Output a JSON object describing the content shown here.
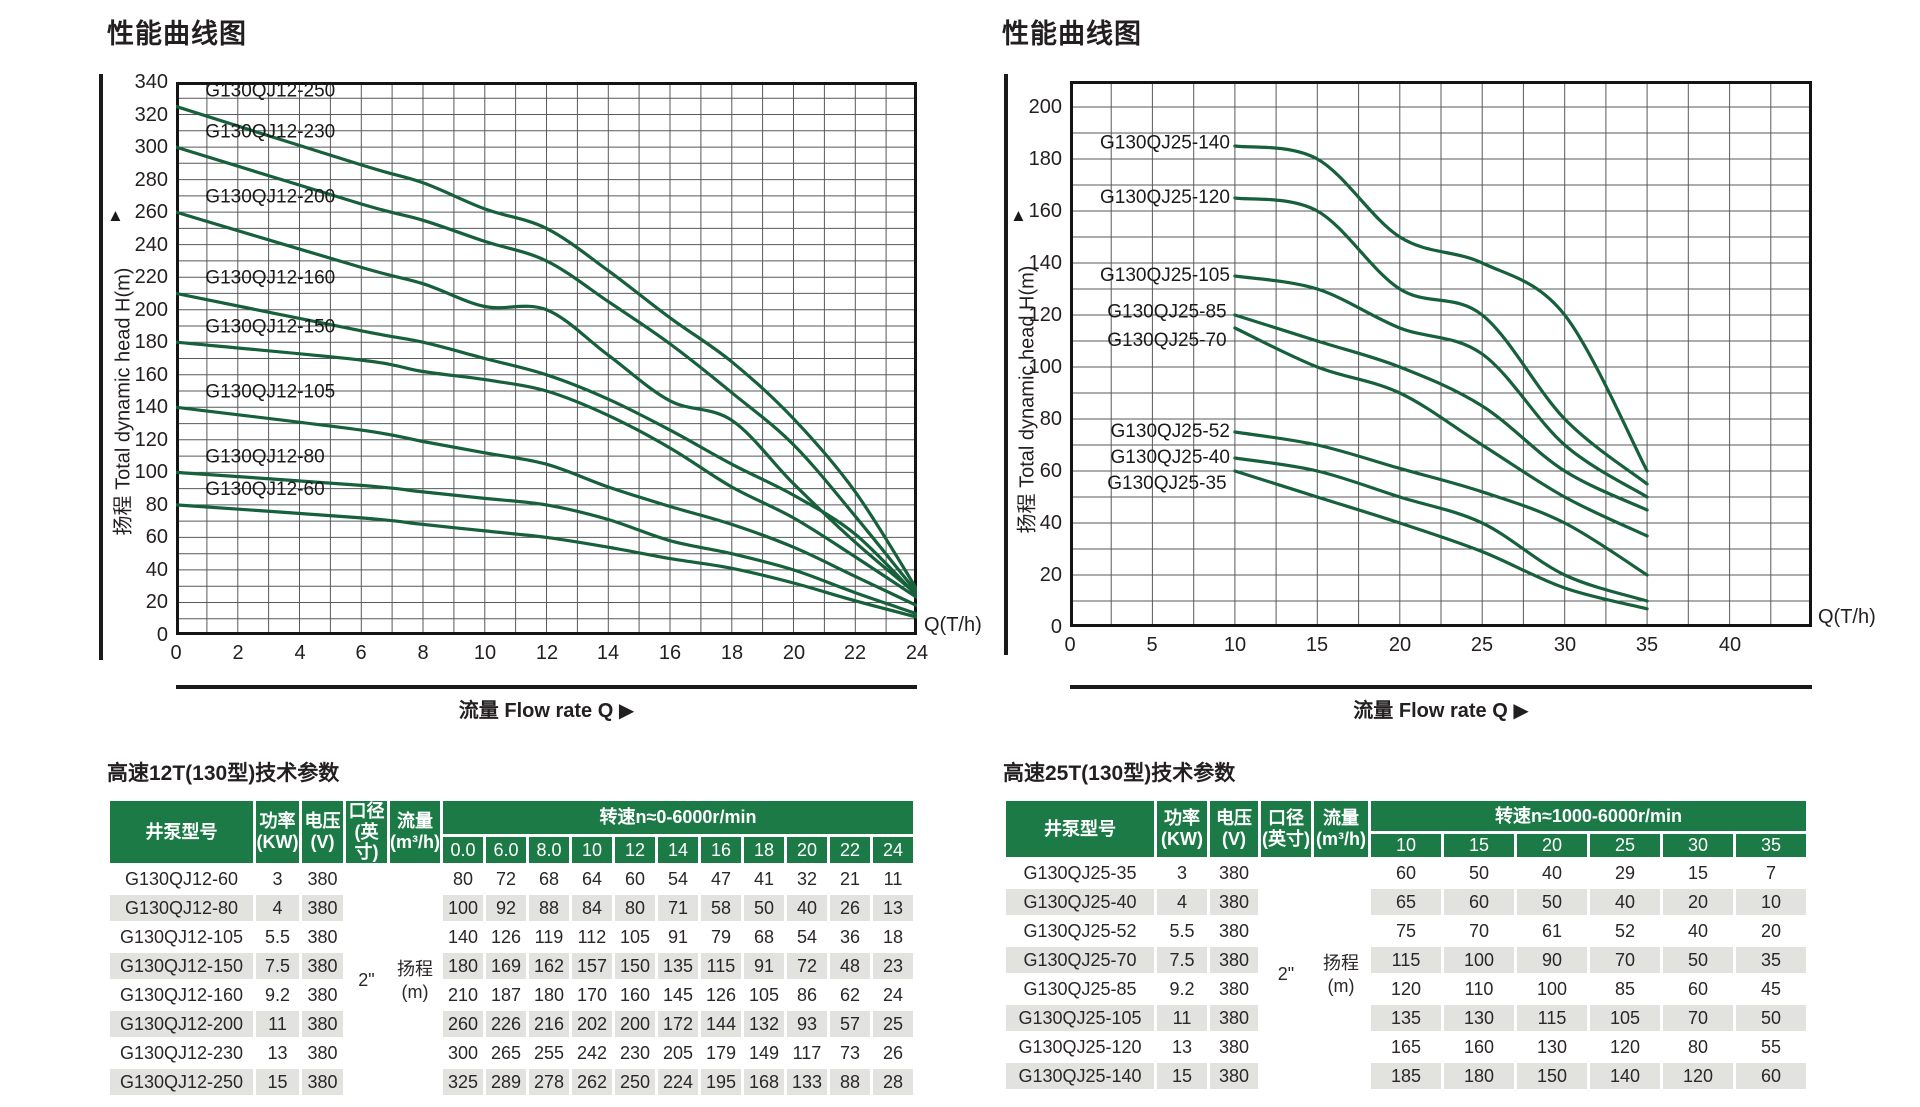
{
  "colors": {
    "curve_green": "#16603B",
    "table_header_green": "#1B7A46",
    "row_alt_gray": "#E2E2DE",
    "grid_line": "#58595B",
    "ink": "#231F20"
  },
  "chart_data": [
    {
      "type": "line",
      "title": "性能曲线图",
      "ylabel": "扬程 Total dynamic head H(m)",
      "ylabel_arrow": "▲",
      "xlabel": "流量 Flow rate Q",
      "xlabel_arrow": "▶",
      "x_unit": "Q(T/h)",
      "xlim": [
        0,
        24
      ],
      "ylim": [
        0,
        340
      ],
      "x_ticks": [
        0,
        2,
        4,
        6,
        8,
        10,
        12,
        14,
        16,
        18,
        20,
        22,
        24
      ],
      "x_grid_step": 1,
      "y_ticks": [
        0,
        20,
        40,
        60,
        80,
        100,
        120,
        140,
        160,
        180,
        200,
        220,
        240,
        260,
        280,
        300,
        320,
        340
      ],
      "y_grid_step": 10,
      "grid": true,
      "legend_position": "inline-labels",
      "x": [
        0,
        6,
        8,
        10,
        12,
        14,
        16,
        18,
        20,
        22,
        24
      ],
      "label_anchor": "start",
      "series": [
        {
          "name": "G130QJ12-250",
          "values": [
            325,
            289,
            278,
            262,
            250,
            224,
            195,
            168,
            133,
            88,
            28
          ],
          "label_x": 0.95,
          "label_y": 331
        },
        {
          "name": "G130QJ12-230",
          "values": [
            300,
            265,
            255,
            242,
            230,
            205,
            179,
            149,
            117,
            73,
            26
          ],
          "label_x": 0.95,
          "label_y": 306
        },
        {
          "name": "G130QJ12-200",
          "values": [
            260,
            226,
            216,
            202,
            200,
            172,
            144,
            132,
            93,
            57,
            25
          ],
          "label_x": 0.95,
          "label_y": 266
        },
        {
          "name": "G130QJ12-160",
          "values": [
            210,
            187,
            180,
            170,
            160,
            145,
            126,
            105,
            86,
            62,
            24
          ],
          "label_x": 0.95,
          "label_y": 216
        },
        {
          "name": "G130QJ12-150",
          "values": [
            180,
            169,
            162,
            157,
            150,
            135,
            115,
            91,
            72,
            48,
            23
          ],
          "label_x": 0.95,
          "label_y": 186
        },
        {
          "name": "G130QJ12-105",
          "values": [
            140,
            126,
            119,
            112,
            105,
            91,
            79,
            68,
            54,
            36,
            18
          ],
          "label_x": 0.95,
          "label_y": 146
        },
        {
          "name": "G130QJ12-80",
          "values": [
            100,
            92,
            88,
            84,
            80,
            71,
            58,
            50,
            40,
            26,
            13
          ],
          "label_x": 0.95,
          "label_y": 106
        },
        {
          "name": "G130QJ12-60",
          "values": [
            80,
            72,
            68,
            64,
            60,
            54,
            47,
            41,
            32,
            21,
            11
          ],
          "label_x": 0.95,
          "label_y": 86
        }
      ]
    },
    {
      "type": "line",
      "title": "性能曲线图",
      "ylabel": "扬程 Total dynamic head H(m)",
      "ylabel_arrow": "▲",
      "xlabel": "流量 Flow rate Q",
      "xlabel_arrow": "▶",
      "x_unit": "Q(T/h)",
      "xlim": [
        0,
        45
      ],
      "ylim": [
        0,
        210
      ],
      "x_ticks": [
        0,
        5,
        10,
        15,
        20,
        25,
        30,
        35,
        40
      ],
      "x_grid_step": 2.5,
      "y_ticks": [
        0,
        20,
        40,
        60,
        80,
        100,
        120,
        140,
        160,
        180,
        200
      ],
      "y_grid_step": 10,
      "grid": true,
      "legend_position": "inline-labels",
      "x": [
        10,
        15,
        20,
        25,
        30,
        35
      ],
      "label_anchor": "end",
      "series": [
        {
          "name": "G130QJ25-140",
          "values": [
            185,
            180,
            150,
            140,
            120,
            60
          ],
          "label_x": 9.7,
          "label_y": 186
        },
        {
          "name": "G130QJ25-120",
          "values": [
            165,
            160,
            130,
            120,
            80,
            55
          ],
          "label_x": 9.7,
          "label_y": 165
        },
        {
          "name": "G130QJ25-105",
          "values": [
            135,
            130,
            115,
            105,
            70,
            50
          ],
          "label_x": 9.7,
          "label_y": 135
        },
        {
          "name": "G130QJ25-85",
          "values": [
            120,
            110,
            100,
            85,
            60,
            45
          ],
          "label_x": 9.5,
          "label_y": 121
        },
        {
          "name": "G130QJ25-70",
          "values": [
            115,
            100,
            90,
            70,
            50,
            35
          ],
          "label_x": 9.5,
          "label_y": 110
        },
        {
          "name": "G130QJ25-52",
          "values": [
            75,
            70,
            61,
            52,
            40,
            20
          ],
          "label_x": 9.7,
          "label_y": 75
        },
        {
          "name": "G130QJ25-40",
          "values": [
            65,
            60,
            50,
            40,
            20,
            10
          ],
          "label_x": 9.7,
          "label_y": 65
        },
        {
          "name": "G130QJ25-35",
          "values": [
            60,
            50,
            40,
            29,
            15,
            7
          ],
          "label_x": 9.5,
          "label_y": 55
        }
      ]
    }
  ],
  "tables": [
    {
      "title": "高速12T(130型)技术参数",
      "header": {
        "model": "井泵型号",
        "power": [
          "功率",
          "(KW)"
        ],
        "voltage": [
          "电压",
          "(V)"
        ],
        "diameter": [
          "口径",
          "(英寸)"
        ],
        "flow": [
          "流量",
          "(m³/h)"
        ],
        "speed_group": "转速n≈0-6000r/min",
        "speed_cols": [
          "0.0",
          "6.0",
          "8.0",
          "10",
          "12",
          "14",
          "16",
          "18",
          "20",
          "22",
          "24"
        ]
      },
      "span_cells": {
        "diameter": "2\"",
        "flow": [
          "扬程",
          "(m)"
        ]
      },
      "rows": [
        {
          "model": "G130QJ12-60",
          "power": "3",
          "voltage": "380",
          "values": [
            "80",
            "72",
            "68",
            "64",
            "60",
            "54",
            "47",
            "41",
            "32",
            "21",
            "11"
          ]
        },
        {
          "model": "G130QJ12-80",
          "power": "4",
          "voltage": "380",
          "values": [
            "100",
            "92",
            "88",
            "84",
            "80",
            "71",
            "58",
            "50",
            "40",
            "26",
            "13"
          ]
        },
        {
          "model": "G130QJ12-105",
          "power": "5.5",
          "voltage": "380",
          "values": [
            "140",
            "126",
            "119",
            "112",
            "105",
            "91",
            "79",
            "68",
            "54",
            "36",
            "18"
          ]
        },
        {
          "model": "G130QJ12-150",
          "power": "7.5",
          "voltage": "380",
          "values": [
            "180",
            "169",
            "162",
            "157",
            "150",
            "135",
            "115",
            "91",
            "72",
            "48",
            "23"
          ]
        },
        {
          "model": "G130QJ12-160",
          "power": "9.2",
          "voltage": "380",
          "values": [
            "210",
            "187",
            "180",
            "170",
            "160",
            "145",
            "126",
            "105",
            "86",
            "62",
            "24"
          ]
        },
        {
          "model": "G130QJ12-200",
          "power": "11",
          "voltage": "380",
          "values": [
            "260",
            "226",
            "216",
            "202",
            "200",
            "172",
            "144",
            "132",
            "93",
            "57",
            "25"
          ]
        },
        {
          "model": "G130QJ12-230",
          "power": "13",
          "voltage": "380",
          "values": [
            "300",
            "265",
            "255",
            "242",
            "230",
            "205",
            "179",
            "149",
            "117",
            "73",
            "26"
          ]
        },
        {
          "model": "G130QJ12-250",
          "power": "15",
          "voltage": "380",
          "values": [
            "325",
            "289",
            "278",
            "262",
            "250",
            "224",
            "195",
            "168",
            "133",
            "88",
            "28"
          ]
        }
      ]
    },
    {
      "title": "高速25T(130型)技术参数",
      "header": {
        "model": "井泵型号",
        "power": [
          "功率",
          "(KW)"
        ],
        "voltage": [
          "电压",
          "(V)"
        ],
        "diameter": [
          "口径",
          "(英寸)"
        ],
        "flow": [
          "流量",
          "(m³/h)"
        ],
        "speed_group": "转速n≈1000-6000r/min",
        "speed_cols": [
          "10",
          "15",
          "20",
          "25",
          "30",
          "35"
        ]
      },
      "span_cells": {
        "diameter": "2\"",
        "flow": [
          "扬程",
          "(m)"
        ]
      },
      "rows": [
        {
          "model": "G130QJ25-35",
          "power": "3",
          "voltage": "380",
          "values": [
            "60",
            "50",
            "40",
            "29",
            "15",
            "7"
          ]
        },
        {
          "model": "G130QJ25-40",
          "power": "4",
          "voltage": "380",
          "values": [
            "65",
            "60",
            "50",
            "40",
            "20",
            "10"
          ]
        },
        {
          "model": "G130QJ25-52",
          "power": "5.5",
          "voltage": "380",
          "values": [
            "75",
            "70",
            "61",
            "52",
            "40",
            "20"
          ]
        },
        {
          "model": "G130QJ25-70",
          "power": "7.5",
          "voltage": "380",
          "values": [
            "115",
            "100",
            "90",
            "70",
            "50",
            "35"
          ]
        },
        {
          "model": "G130QJ25-85",
          "power": "9.2",
          "voltage": "380",
          "values": [
            "120",
            "110",
            "100",
            "85",
            "60",
            "45"
          ]
        },
        {
          "model": "G130QJ25-105",
          "power": "11",
          "voltage": "380",
          "values": [
            "135",
            "130",
            "115",
            "105",
            "70",
            "50"
          ]
        },
        {
          "model": "G130QJ25-120",
          "power": "13",
          "voltage": "380",
          "values": [
            "165",
            "160",
            "130",
            "120",
            "80",
            "55"
          ]
        },
        {
          "model": "G130QJ25-140",
          "power": "15",
          "voltage": "380",
          "values": [
            "185",
            "180",
            "150",
            "140",
            "120",
            "60"
          ]
        }
      ]
    }
  ]
}
